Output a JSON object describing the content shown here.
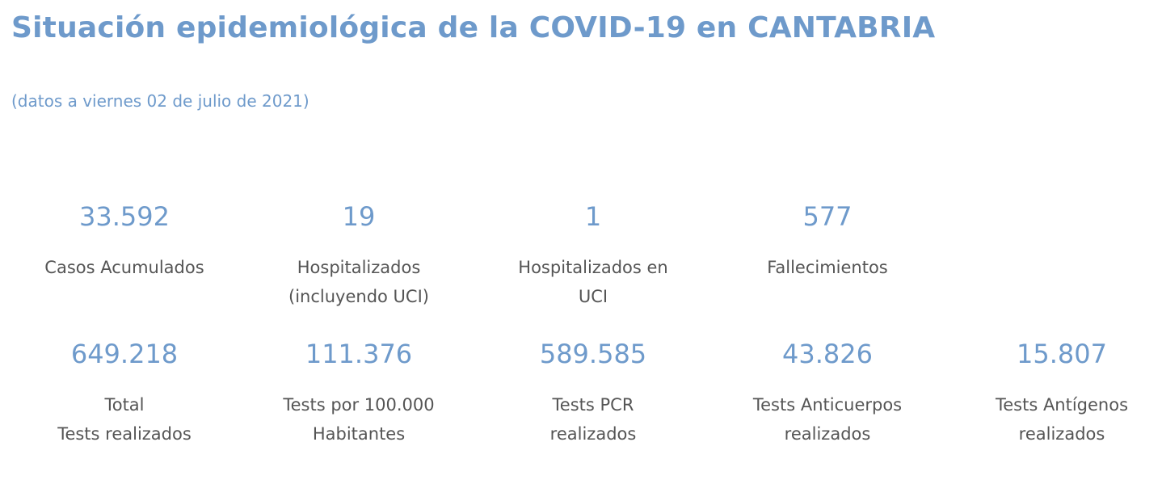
{
  "header": {
    "title": "Situación epidemiológica de la COVID-19 en CANTABRIA",
    "subtitle": "(datos a viernes 02 de julio de 2021)"
  },
  "stats": {
    "rows": [
      [
        {
          "value": "33.592",
          "label": [
            "Casos Acumulados"
          ]
        },
        {
          "value": "19",
          "label": [
            "Hospitalizados",
            "(incluyendo UCI)"
          ]
        },
        {
          "value": "1",
          "label": [
            "Hospitalizados en",
            "UCI"
          ]
        },
        {
          "value": "577",
          "label": [
            "Fallecimientos"
          ]
        }
      ],
      [
        {
          "value": "649.218",
          "label": [
            "Total",
            "Tests realizados"
          ]
        },
        {
          "value": "111.376",
          "label": [
            "Tests por 100.000",
            "Habitantes"
          ]
        },
        {
          "value": "589.585",
          "label": [
            "Tests PCR",
            "realizados"
          ]
        },
        {
          "value": "43.826",
          "label": [
            "Tests Anticuerpos",
            "realizados"
          ]
        },
        {
          "value": "15.807",
          "label": [
            "Tests Antígenos",
            "realizados"
          ]
        }
      ]
    ]
  }
}
